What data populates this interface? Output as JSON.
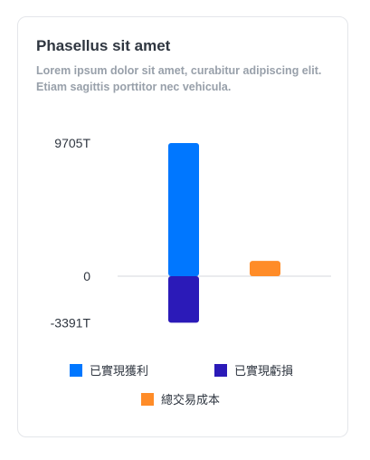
{
  "card": {
    "title": "Phasellus sit amet",
    "subtitle": "Lorem ipsum dolor sit amet, curabitur adipiscing elit. Etiam sagittis porttitor nec vehicula."
  },
  "chart_data": {
    "type": "bar",
    "title": "Phasellus sit amet",
    "subtitle": "Lorem ipsum dolor sit amet, curabitur adipiscing elit. Etiam sagittis porttitor nec vehicula.",
    "xlabel": "",
    "ylabel": "",
    "ylim": [
      -3391,
      9705
    ],
    "grid": false,
    "legend_position": "bottom",
    "tick_labels": [
      "9705T",
      "0",
      "-3391T"
    ],
    "tick_values": [
      9705,
      0,
      -3391
    ],
    "series": [
      {
        "name": "已實現獲利",
        "color": "#0077ff",
        "value": 9705
      },
      {
        "name": "已實現虧損",
        "color": "#2b1ab8",
        "value": -3391
      },
      {
        "name": "總交易成本",
        "color": "#ff8c28",
        "value": 1110
      }
    ]
  }
}
